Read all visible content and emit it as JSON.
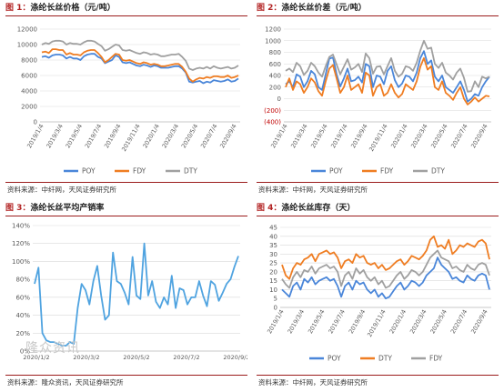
{
  "panels": [
    {
      "title_prefix": "图 1：",
      "title_text": "涤纶长丝价格（元/吨）",
      "source": "资料来源：中纤网，天风证券研究所",
      "chart_data": {
        "type": "line",
        "title": "涤纶长丝价格（元/吨）",
        "xlabel": "",
        "ylabel": "",
        "ylim": [
          0,
          12000
        ],
        "yticks": [
          "0",
          "2000",
          "4000",
          "6000",
          "8000",
          "10000",
          "12000"
        ],
        "xticks": [
          "2019/1/4",
          "2019/3/4",
          "2019/5/4",
          "2019/7/4",
          "2019/9/4",
          "2019/11/4",
          "2020/1/4",
          "2020/3/4",
          "2020/5/4",
          "2020/7/4",
          "2020/9/4"
        ],
        "grid": true,
        "legend": "bottom",
        "series": [
          {
            "name": "POY",
            "color": "#4a86d9",
            "values": [
              8400,
              8500,
              8300,
              8600,
              8700,
              8700,
              8600,
              8200,
              8400,
              8200,
              8200,
              8000,
              8500,
              8700,
              8800,
              8800,
              8400,
              8200,
              7600,
              7800,
              8000,
              8600,
              8400,
              7700,
              7600,
              7700,
              7500,
              7300,
              7200,
              7400,
              7300,
              7100,
              7300,
              7200,
              7000,
              7000,
              7000,
              7100,
              7200,
              7200,
              6900,
              6400,
              5200,
              5100,
              5200,
              5300,
              5000,
              5200,
              5100,
              5400,
              5300,
              5200,
              5300,
              5500,
              5200,
              5300,
              5600
            ]
          },
          {
            "name": "FDY",
            "color": "#ef7d22",
            "values": [
              9000,
              9100,
              8900,
              9400,
              9400,
              9300,
              9300,
              8700,
              8900,
              8700,
              8700,
              8600,
              9000,
              9200,
              9300,
              9300,
              8900,
              8400,
              7700,
              8000,
              8400,
              8800,
              8700,
              8000,
              7900,
              8000,
              7800,
              7600,
              7500,
              7700,
              7600,
              7400,
              7500,
              7400,
              7200,
              7200,
              7300,
              7400,
              7500,
              7500,
              7100,
              6500,
              5600,
              5200,
              5500,
              5700,
              5600,
              5800,
              5700,
              5900,
              5900,
              5800,
              5800,
              6000,
              5700,
              5800,
              6000
            ]
          },
          {
            "name": "DTY",
            "color": "#a0a0a0",
            "values": [
              10000,
              10200,
              10100,
              10400,
              10500,
              10500,
              10400,
              10000,
              10200,
              10100,
              10100,
              10000,
              10300,
              10500,
              10500,
              10400,
              10100,
              9800,
              9200,
              9400,
              9700,
              10000,
              9900,
              9300,
              9200,
              9300,
              9100,
              8900,
              8800,
              9000,
              8900,
              8700,
              8800,
              8700,
              8500,
              8500,
              8600,
              8700,
              8700,
              8800,
              8400,
              7900,
              6900,
              6700,
              6900,
              7000,
              6900,
              7100,
              6900,
              7200,
              7000,
              6900,
              7000,
              7100,
              6900,
              7000,
              7300
            ]
          }
        ]
      }
    },
    {
      "title_prefix": "图 2：",
      "title_text": "涤纶长丝价差（元/吨）",
      "source": "资料来源：中纤网，天风证券研究所",
      "chart_data": {
        "type": "line",
        "title": "涤纶长丝价差（元/吨）",
        "xlabel": "",
        "ylabel": "",
        "ylim": [
          -400,
          1200
        ],
        "yticks": [
          "(400)",
          "(200)",
          "0",
          "200",
          "400",
          "600",
          "800",
          "1000",
          "1200"
        ],
        "xticks": [
          "2019/1/4",
          "2019/3/4",
          "2019/5/4",
          "2019/7/4",
          "2019/9/4",
          "2019/11/4",
          "2020/1/4",
          "2020/3/4",
          "2020/5/4",
          "2020/7/4",
          "2020/9/4"
        ],
        "grid": true,
        "legend": "bottom",
        "series": [
          {
            "name": "POY",
            "color": "#4a86d9",
            "values": [
              250,
              300,
              200,
              420,
              380,
              200,
              300,
              480,
              420,
              200,
              150,
              420,
              690,
              710,
              420,
              210,
              350,
              520,
              300,
              320,
              380,
              280,
              600,
              560,
              200,
              400,
              380,
              250,
              480,
              560,
              320,
              200,
              260,
              400,
              380,
              300,
              450,
              700,
              820,
              600,
              660,
              380,
              300,
              400,
              200,
              150,
              100,
              200,
              300,
              150,
              -50,
              0,
              80,
              50,
              200,
              300,
              380
            ]
          },
          {
            "name": "FDY",
            "color": "#ef7d22",
            "values": [
              200,
              350,
              150,
              300,
              250,
              100,
              200,
              350,
              280,
              130,
              50,
              300,
              520,
              580,
              350,
              100,
              200,
              400,
              150,
              200,
              250,
              100,
              450,
              400,
              50,
              200,
              250,
              50,
              100,
              250,
              100,
              20,
              80,
              250,
              200,
              150,
              300,
              550,
              700,
              500,
              560,
              200,
              150,
              300,
              100,
              50,
              -20,
              100,
              200,
              0,
              -100,
              -50,
              20,
              -50,
              0,
              50,
              40
            ]
          },
          {
            "name": "DTY",
            "color": "#a0a0a0",
            "values": [
              480,
              520,
              460,
              620,
              560,
              410,
              480,
              620,
              560,
              450,
              380,
              560,
              720,
              760,
              590,
              420,
              550,
              680,
              500,
              540,
              600,
              460,
              780,
              700,
              430,
              550,
              560,
              420,
              560,
              700,
              480,
              380,
              430,
              560,
              540,
              480,
              620,
              830,
              1000,
              860,
              880,
              600,
              530,
              620,
              450,
              400,
              330,
              450,
              520,
              360,
              120,
              130,
              300,
              200,
              380,
              350,
              380
            ]
          }
        ]
      }
    },
    {
      "title_prefix": "图 3：",
      "title_text": "涤纶长丝平均产销率",
      "source": "资料来源：隆众资讯，天风证券研究所",
      "watermark": "隆众资讯",
      "chart_data": {
        "type": "line",
        "title": "涤纶长丝平均产销率",
        "xlabel": "",
        "ylabel": "",
        "ylim": [
          0,
          140
        ],
        "yticks": [
          "0%",
          "20%",
          "40%",
          "60%",
          "80%",
          "100%",
          "120%",
          "140%"
        ],
        "xticks": [
          "2020/1/2",
          "2020/3/2",
          "2020/5/2",
          "2020/7/2",
          "2020/9/2"
        ],
        "grid": true,
        "legend": "none",
        "series": [
          {
            "name": "",
            "color": "#4fa3e0",
            "values": [
              75,
              93,
              20,
              12,
              10,
              10,
              8,
              6,
              6,
              10,
              8,
              48,
              75,
              68,
              52,
              78,
              95,
              62,
              35,
              40,
              110,
              78,
              75,
              65,
              52,
              105,
              62,
              58,
              120,
              62,
              78,
              55,
              48,
              60,
              52,
              84,
              48,
              70,
              68,
              52,
              60,
              60,
              78,
              62,
              50,
              78,
              74,
              56,
              65,
              75,
              80,
              94,
              106
            ]
          }
        ]
      }
    },
    {
      "title_prefix": "图 4：",
      "title_text": "涤纶长丝库存（天）",
      "source": "资料来源：中纤网，天风证券研究所",
      "chart_data": {
        "type": "line",
        "title": "涤纶长丝库存（天）",
        "xlabel": "",
        "ylabel": "",
        "ylim": [
          0,
          45
        ],
        "yticks": [
          "0",
          "5",
          "10",
          "15",
          "20",
          "25",
          "30",
          "35",
          "40",
          "45"
        ],
        "xticks": [
          "2019/1/4",
          "2019/3/4",
          "2019/5/4",
          "2019/7/4",
          "2019/9/4",
          "2019/11/4",
          "2020/1/4",
          "2020/3/4",
          "2020/5/4",
          "2020/7/4",
          "2020/9/4"
        ],
        "grid": true,
        "legend": "bottom",
        "series": [
          {
            "name": "POY",
            "color": "#4a86d9",
            "values": [
              10,
              8,
              6,
              12,
              14,
              10,
              16,
              14,
              17,
              13,
              15,
              16,
              17,
              15,
              16,
              12,
              6,
              12,
              14,
              10,
              15,
              13,
              14,
              10,
              8,
              10,
              6,
              8,
              5,
              6,
              9,
              12,
              14,
              10,
              12,
              15,
              14,
              12,
              14,
              18,
              20,
              22,
              28,
              24,
              22,
              20,
              16,
              17,
              15,
              14,
              18,
              16,
              15,
              18,
              19,
              18,
              10
            ]
          },
          {
            "name": "DTY",
            "color": "#ef7d22",
            "values": [
              24,
              18,
              16,
              22,
              25,
              24,
              27,
              28,
              30,
              26,
              30,
              31,
              32,
              30,
              31,
              28,
              22,
              26,
              27,
              25,
              30,
              28,
              29,
              25,
              24,
              25,
              22,
              24,
              21,
              22,
              24,
              26,
              27,
              24,
              26,
              29,
              28,
              27,
              29,
              32,
              38,
              40,
              34,
              35,
              33,
              38,
              30,
              32,
              35,
              34,
              36,
              35,
              34,
              37,
              38,
              36,
              27
            ]
          },
          {
            "name": "FDY",
            "color": "#a0a0a0",
            "values": [
              16,
              13,
              11,
              17,
              20,
              17,
              21,
              20,
              23,
              19,
              22,
              23,
              24,
              22,
              23,
              20,
              12,
              18,
              20,
              16,
              22,
              19,
              21,
              17,
              15,
              17,
              13,
              15,
              11,
              12,
              15,
              18,
              20,
              16,
              18,
              21,
              20,
              18,
              20,
              24,
              28,
              30,
              32,
              28,
              27,
              26,
              22,
              23,
              21,
              20,
              24,
              22,
              21,
              24,
              25,
              24,
              18
            ]
          }
        ]
      }
    }
  ]
}
